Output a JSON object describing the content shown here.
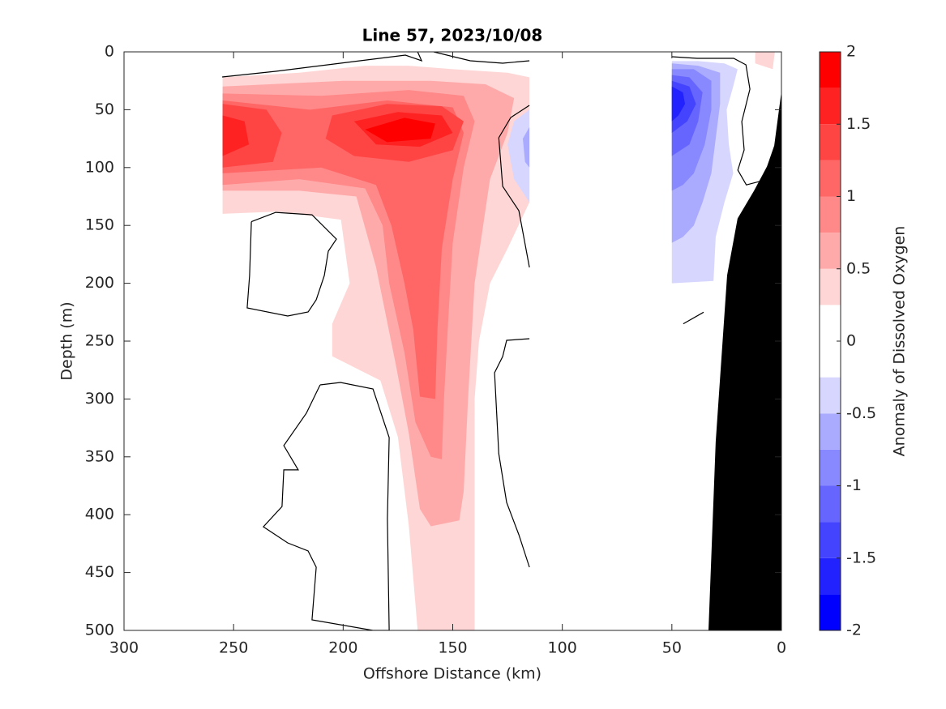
{
  "chart_data": {
    "type": "contour",
    "title": "Line 57, 2023/10/08",
    "xlabel": "Offshore Distance (km)",
    "ylabel": "Depth (m)",
    "xlim": [
      300,
      0
    ],
    "ylim": [
      0,
      500
    ],
    "xticks": [
      300,
      250,
      200,
      150,
      100,
      50,
      0
    ],
    "yticks": [
      0,
      50,
      100,
      150,
      200,
      250,
      300,
      350,
      400,
      450,
      500
    ],
    "colorbar": {
      "label": "Anomaly of Dissolved Oxygen",
      "clim": [
        -2,
        2
      ],
      "ticks": [
        -2,
        -1.5,
        -1,
        -0.5,
        0,
        0.5,
        1,
        1.5,
        2
      ],
      "levels": [
        -2,
        -1.75,
        -1.5,
        -1.25,
        -1,
        -0.75,
        -0.5,
        -0.25,
        0,
        0.25,
        0.5,
        0.75,
        1,
        1.25,
        1.5,
        1.75,
        2
      ],
      "colors": [
        "#0000ff",
        "#2222ff",
        "#4444ff",
        "#6666ff",
        "#8888ff",
        "#aaaaff",
        "#d6d6ff",
        "#ffffff",
        "#ffffff",
        "#ffd6d6",
        "#ffaaaa",
        "#ff8888",
        "#ff6666",
        "#ff4444",
        "#ff2222",
        "#ff0000"
      ]
    },
    "regions": [
      {
        "range": [
          0.25,
          0.5
        ],
        "x": [
          255,
          220,
          190,
          170,
          150,
          125,
          115,
          115,
          120,
          125,
          133,
          138,
          140,
          140,
          140,
          166,
          170,
          175,
          183,
          205,
          205,
          197,
          201,
          230,
          255
        ],
        "y": [
          22,
          18,
          12,
          12,
          15,
          18,
          22,
          130,
          150,
          170,
          200,
          250,
          300,
          400,
          500,
          500,
          410,
          333,
          284,
          263,
          235,
          200,
          145,
          138,
          140
        ]
      },
      {
        "range": [
          0.5,
          0.75
        ],
        "x": [
          255,
          200,
          160,
          135,
          122,
          125,
          133,
          140,
          143,
          145,
          147,
          160,
          165,
          170,
          176,
          185,
          194,
          220,
          255
        ],
        "y": [
          30,
          25,
          25,
          28,
          40,
          70,
          110,
          200,
          300,
          380,
          405,
          410,
          395,
          330,
          270,
          186,
          125,
          120,
          120
        ]
      },
      {
        "range": [
          0.75,
          1
        ],
        "x": [
          255,
          210,
          170,
          145,
          140,
          145,
          150,
          152,
          154,
          155,
          160,
          167,
          172,
          179,
          182,
          190,
          220,
          255
        ],
        "y": [
          36,
          38,
          33,
          38,
          60,
          100,
          165,
          230,
          300,
          352,
          350,
          320,
          260,
          200,
          150,
          118,
          110,
          115
        ]
      },
      {
        "range": [
          1,
          1.25
        ],
        "x": [
          255,
          215,
          180,
          150,
          145,
          150,
          155,
          157,
          158,
          165,
          168,
          172,
          178,
          185,
          210,
          255
        ],
        "y": [
          42,
          50,
          42,
          48,
          70,
          110,
          170,
          240,
          300,
          298,
          240,
          200,
          150,
          115,
          100,
          105
        ]
      },
      {
        "range": [
          1.25,
          1.5
        ],
        "x": [
          255,
          235,
          228,
          232,
          255
        ],
        "y": [
          45,
          50,
          70,
          95,
          100
        ]
      },
      {
        "range": [
          1.25,
          1.5
        ],
        "x": [
          205,
          180,
          155,
          145,
          150,
          170,
          195,
          208
        ],
        "y": [
          55,
          45,
          47,
          60,
          85,
          95,
          90,
          75
        ]
      },
      {
        "range": [
          1.5,
          1.75
        ],
        "x": [
          255,
          245,
          243,
          255
        ],
        "y": [
          55,
          60,
          80,
          90
        ]
      },
      {
        "range": [
          1.5,
          1.75
        ],
        "x": [
          195,
          175,
          155,
          150,
          165,
          185
        ],
        "y": [
          60,
          52,
          55,
          70,
          82,
          80
        ]
      },
      {
        "range": [
          1.75,
          2
        ],
        "x": [
          190,
          172,
          158,
          160,
          180
        ],
        "y": [
          67,
          57,
          62,
          75,
          78
        ]
      },
      {
        "range": [
          0.25,
          0.5
        ],
        "x": [
          12,
          3,
          4,
          12
        ],
        "y": [
          0,
          0,
          15,
          10
        ]
      },
      {
        "range": [
          -0.5,
          -0.25
        ],
        "x": [
          50,
          38,
          26,
          20,
          22,
          25,
          24,
          22,
          26,
          30,
          31,
          50
        ],
        "y": [
          8,
          8,
          10,
          15,
          30,
          50,
          80,
          105,
          130,
          160,
          198,
          200
        ]
      },
      {
        "range": [
          -0.75,
          -0.5
        ],
        "x": [
          50,
          38,
          28,
          28,
          30,
          32,
          36,
          40,
          45,
          50
        ],
        "y": [
          10,
          12,
          18,
          45,
          75,
          105,
          130,
          150,
          160,
          165
        ]
      },
      {
        "range": [
          -1,
          -0.75
        ],
        "x": [
          50,
          40,
          32,
          32,
          35,
          40,
          45,
          50
        ],
        "y": [
          15,
          15,
          25,
          50,
          80,
          105,
          115,
          120
        ]
      },
      {
        "range": [
          -1.25,
          -1
        ],
        "x": [
          50,
          42,
          36,
          38,
          42,
          50
        ],
        "y": [
          20,
          22,
          35,
          60,
          80,
          90
        ]
      },
      {
        "range": [
          -1.5,
          -1.25
        ],
        "x": [
          50,
          42,
          39,
          43,
          50
        ],
        "y": [
          25,
          30,
          45,
          60,
          70
        ]
      },
      {
        "range": [
          -1.75,
          -1.5
        ],
        "x": [
          50,
          45,
          44,
          47,
          50
        ],
        "y": [
          30,
          35,
          45,
          55,
          60
        ]
      },
      {
        "range": [
          -0.5,
          -0.25
        ],
        "x": [
          115,
          122,
          125,
          122,
          115
        ],
        "y": [
          50,
          60,
          80,
          110,
          130
        ]
      },
      {
        "range": [
          -0.75,
          -0.5
        ],
        "x": [
          115,
          118,
          117,
          115
        ],
        "y": [
          65,
          75,
          95,
          100
        ]
      }
    ],
    "zero_contours": [
      {
        "x": [
          241.9,
          230.8,
          214.2,
          203.1,
          206.8,
          208.6,
          212.3,
          216,
          225.3,
          243.8,
          242.7,
          241.9
        ],
        "y": [
          146.8,
          138.7,
          140.8,
          161.8,
          172.3,
          193.3,
          214.3,
          224.8,
          228.3,
          221.3,
          193.3,
          146.8
        ]
      },
      {
        "x": [
          210.5,
          201.2,
          186.4,
          179,
          179.8,
          179,
          186.4,
          214.2,
          212.3,
          216,
          225.3,
          236.4,
          227.9,
          227.1,
          220.5,
          227.1,
          216.8,
          210.5
        ],
        "y": [
          287.8,
          285.7,
          291.3,
          333.3,
          403.4,
          500,
          500,
          490.9,
          445.4,
          431.4,
          424.4,
          410.4,
          392.9,
          361.3,
          361.3,
          340.3,
          312.3,
          287.8
        ]
      },
      {
        "x": [
          115,
          123.5,
          129,
          127.2,
          119.8,
          115
        ],
        "y": [
          46.2,
          56.7,
          74.2,
          116.2,
          137.3,
          186.3
        ]
      },
      {
        "x": [
          115,
          125.4,
          127.2,
          130.9,
          129,
          125.4,
          119.8,
          115
        ],
        "y": [
          247.9,
          249.3,
          263.3,
          277.3,
          347.3,
          389.4,
          417.4,
          445.4
        ]
      },
      {
        "x": [
          255.2,
          230.8,
          201.2,
          171.6,
          164.2,
          166
        ],
        "y": [
          21.7,
          16.8,
          9.8,
          2.8,
          7.7,
          0
        ]
      },
      {
        "x": [
          158.7,
          142,
          127.2,
          115
        ],
        "y": [
          0,
          7.7,
          9.8,
          7.7
        ]
      },
      {
        "x": [
          50,
          38.5,
          21.8,
          16.2,
          14.4,
          18.1,
          17,
          19.9,
          16,
          10
        ],
        "y": [
          4.2,
          5.6,
          5.6,
          11.2,
          32.2,
          60.2,
          84.7,
          102.2,
          115,
          112
        ]
      },
      {
        "x": [
          44.8,
          35.5
        ],
        "y": [
          235,
          225
        ]
      }
    ],
    "bottom": {
      "color": "#000000",
      "x": [
        0,
        3.3,
        6.6,
        12.5,
        20,
        24.8,
        30,
        33.3,
        0
      ],
      "y": [
        34,
        81,
        99,
        120,
        144,
        193,
        337,
        500,
        500
      ]
    }
  }
}
